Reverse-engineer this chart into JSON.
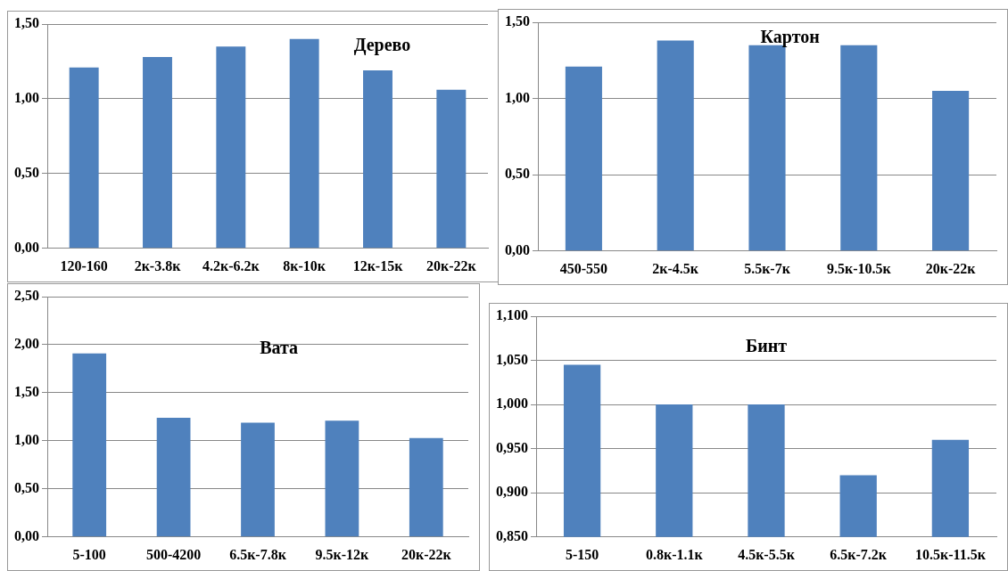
{
  "chart_data": [
    {
      "type": "bar",
      "title": "Дерево",
      "categories": [
        "120-160",
        "2к-3.8к",
        "4.2к-6.2к",
        "8к-10к",
        "12к-15к",
        "20к-22к"
      ],
      "values": [
        1.21,
        1.28,
        1.35,
        1.4,
        1.19,
        1.06
      ],
      "color": "#4f81bd",
      "ylim": [
        0,
        1.5
      ],
      "yticks": [
        {
          "value": 0,
          "label": "0,00"
        },
        {
          "value": 0.5,
          "label": "0,50"
        },
        {
          "value": 1,
          "label": "1,00"
        },
        {
          "value": 1.5,
          "label": "1,50"
        }
      ],
      "grid": "y",
      "legend": false
    },
    {
      "type": "bar",
      "title": "Картон",
      "categories": [
        "450-550",
        "2к-4.5к",
        "5.5к-7к",
        "9.5к-10.5к",
        "20к-22к"
      ],
      "values": [
        1.21,
        1.38,
        1.35,
        1.35,
        1.05
      ],
      "color": "#4f81bd",
      "ylim": [
        0,
        1.5
      ],
      "yticks": [
        {
          "value": 0,
          "label": "0,00"
        },
        {
          "value": 0.5,
          "label": "0,50"
        },
        {
          "value": 1,
          "label": "1,00"
        },
        {
          "value": 1.5,
          "label": "1,50"
        }
      ],
      "grid": "y",
      "legend": false
    },
    {
      "type": "bar",
      "title": "Вата",
      "categories": [
        "5-100",
        "500-4200",
        "6.5к-7.8к",
        "9.5к-12к",
        "20к-22к"
      ],
      "values": [
        1.91,
        1.24,
        1.19,
        1.21,
        1.03
      ],
      "color": "#4f81bd",
      "ylim": [
        0,
        2.5
      ],
      "yticks": [
        {
          "value": 0,
          "label": "0,00"
        },
        {
          "value": 0.5,
          "label": "0,50"
        },
        {
          "value": 1,
          "label": "1,00"
        },
        {
          "value": 1.5,
          "label": "1,50"
        },
        {
          "value": 2,
          "label": "2,00"
        },
        {
          "value": 2.5,
          "label": "2,50"
        }
      ],
      "grid": "y",
      "legend": false
    },
    {
      "type": "bar",
      "title": "Бинт",
      "categories": [
        "5-150",
        "0.8к-1.1к",
        "4.5к-5.5к",
        "6.5к-7.2к",
        "10.5к-11.5к"
      ],
      "values": [
        1.045,
        1.0,
        1.0,
        0.92,
        0.96
      ],
      "color": "#4f81bd",
      "ylim": [
        0.85,
        1.1
      ],
      "yticks": [
        {
          "value": 0.85,
          "label": "0,850"
        },
        {
          "value": 0.9,
          "label": "0,900"
        },
        {
          "value": 0.95,
          "label": "0,950"
        },
        {
          "value": 1.0,
          "label": "1,000"
        },
        {
          "value": 1.05,
          "label": "1,050"
        },
        {
          "value": 1.1,
          "label": "1,100"
        }
      ],
      "grid": "y",
      "legend": false
    }
  ]
}
